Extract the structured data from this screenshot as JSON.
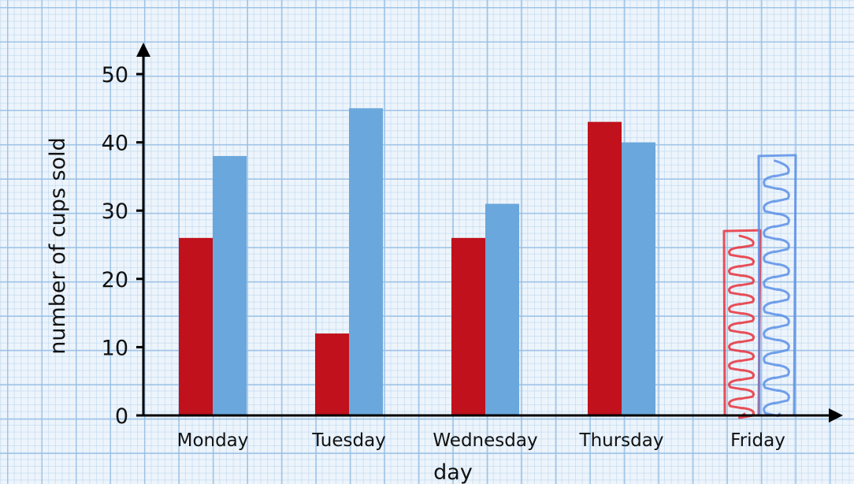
{
  "chart_data": {
    "type": "bar",
    "title": "",
    "xlabel": "day",
    "ylabel": "number of cups sold",
    "categories": [
      "Monday",
      "Tuesday",
      "Wednesday",
      "Thursday",
      "Friday"
    ],
    "ylim": [
      0,
      50
    ],
    "yticks": [
      "0",
      "10",
      "20",
      "30",
      "40",
      "50"
    ],
    "grid": true,
    "series": [
      {
        "color": "#c0111c",
        "values": [
          26,
          12,
          26,
          43,
          27
        ]
      },
      {
        "color": "#6aa7dc",
        "values": [
          38,
          45,
          31,
          40,
          38
        ]
      }
    ],
    "hand_drawn": {
      "category": "Friday",
      "colors": [
        "#e8303a",
        "#5b8fe6"
      ]
    }
  }
}
